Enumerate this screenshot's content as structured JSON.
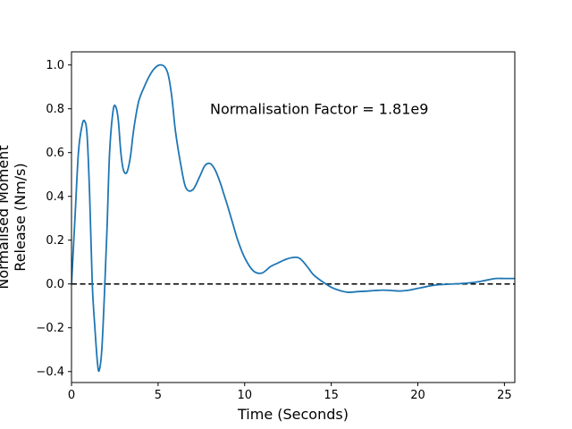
{
  "chart_data": {
    "type": "line",
    "title": "",
    "xlabel": "Time (Seconds)",
    "ylabel_lines": [
      "Normalised Moment",
      "Release (Nm/s)"
    ],
    "annotation": "Normalisation Factor = 1.81e9",
    "annotation_position": {
      "x": 8.0,
      "y": 0.8
    },
    "xlim": [
      0,
      25.6
    ],
    "ylim": [
      -0.45,
      1.06
    ],
    "xticks": [
      0,
      5,
      10,
      15,
      20,
      25
    ],
    "yticks": [
      -0.4,
      -0.2,
      0.0,
      0.2,
      0.4,
      0.6,
      0.8,
      1.0
    ],
    "ytick_labels": [
      "−0.4",
      "−0.2",
      "0.0",
      "0.2",
      "0.4",
      "0.6",
      "0.8",
      "1.0"
    ],
    "grid": false,
    "reference_line": {
      "y": 0.0,
      "style": "dashed",
      "color": "#000000"
    },
    "series": [
      {
        "color": "#1f77b4",
        "x": [
          0,
          0.2,
          0.4,
          0.6,
          0.75,
          0.9,
          1.05,
          1.2,
          1.35,
          1.5,
          1.6,
          1.75,
          1.9,
          2.05,
          2.2,
          2.4,
          2.55,
          2.7,
          2.85,
          3.0,
          3.2,
          3.4,
          3.55,
          3.7,
          3.9,
          4.2,
          4.5,
          4.8,
          5.1,
          5.4,
          5.6,
          5.8,
          6.0,
          6.3,
          6.6,
          7.0,
          7.4,
          7.7,
          8.0,
          8.3,
          8.6,
          8.8,
          9.0,
          9.3,
          9.6,
          10.0,
          10.5,
          11.0,
          11.5,
          11.9,
          12.3,
          12.7,
          13.1,
          13.4,
          13.7,
          14.0,
          14.5,
          15.0,
          15.5,
          16.0,
          16.5,
          17.0,
          17.5,
          18.0,
          18.5,
          19.0,
          19.5,
          20.0,
          20.5,
          21.0,
          21.5,
          22.0,
          22.5,
          23.0,
          23.5,
          24.0,
          24.5,
          25.0,
          25.6
        ],
        "y": [
          0.0,
          0.3,
          0.6,
          0.72,
          0.745,
          0.68,
          0.4,
          0.0,
          -0.2,
          -0.36,
          -0.395,
          -0.3,
          -0.05,
          0.25,
          0.6,
          0.79,
          0.81,
          0.75,
          0.6,
          0.52,
          0.51,
          0.58,
          0.68,
          0.76,
          0.84,
          0.9,
          0.95,
          0.985,
          1.0,
          0.99,
          0.95,
          0.85,
          0.7,
          0.55,
          0.44,
          0.43,
          0.49,
          0.54,
          0.55,
          0.52,
          0.46,
          0.41,
          0.36,
          0.28,
          0.2,
          0.12,
          0.06,
          0.05,
          0.08,
          0.095,
          0.11,
          0.12,
          0.12,
          0.1,
          0.07,
          0.04,
          0.01,
          -0.015,
          -0.03,
          -0.038,
          -0.035,
          -0.033,
          -0.03,
          -0.028,
          -0.03,
          -0.032,
          -0.028,
          -0.02,
          -0.012,
          -0.005,
          -0.002,
          0.0,
          0.002,
          0.005,
          0.01,
          0.018,
          0.025,
          0.025,
          0.025
        ]
      }
    ]
  }
}
